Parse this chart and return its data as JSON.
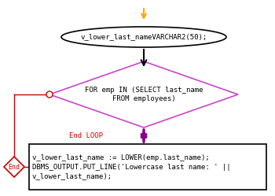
{
  "arrow_orange_color": "#FFA500",
  "arrow_black_color": "#000000",
  "arrow_purple_color": "#880088",
  "ellipse_text": "v_lower_last_nameVARCHAR2(50);",
  "ellipse_border": "#000000",
  "ellipse_fill": "#FFFFFF",
  "diamond_text": "FOR emp IN (SELECT last_name\nFROM employees)",
  "diamond_border": "#CC44CC",
  "diamond_fill": "#FFFFFF",
  "loop_text": "End LOOP",
  "loop_text_color": "#CC0000",
  "rect_text": "v_lower_last_name := LOWER(emp.last_name);\nDBMS_OUTPUT.PUT_LINE('Lowercase last name: ' ||\nv_lower_last_name);",
  "rect_border": "#000000",
  "rect_fill": "#FFFFFF",
  "end_diamond_text": "End",
  "end_diamond_border": "#CC0000",
  "end_diamond_fill": "#FFFFFF",
  "bg_color": "#FFFFFF",
  "loop_line_color": "#CC0000",
  "font_size": 6.5
}
